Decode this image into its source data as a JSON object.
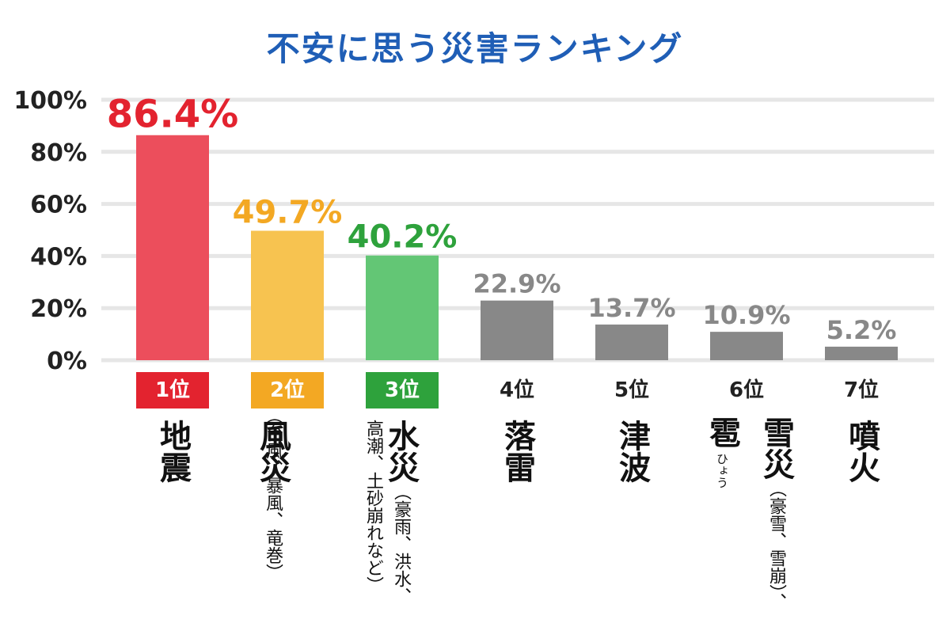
{
  "title": "不安に思う災害ランキング",
  "chart_data": {
    "type": "bar",
    "categories": [
      "地震",
      "風災",
      "水災",
      "落雷",
      "津波",
      "雹",
      "噴火"
    ],
    "values": [
      86.4,
      49.7,
      40.2,
      22.9,
      13.7,
      10.9,
      5.2
    ],
    "value_labels": [
      "86.4%",
      "49.7%",
      "40.2%",
      "22.9%",
      "13.7%",
      "10.9%",
      "5.2%"
    ],
    "ylim": [
      0,
      100
    ],
    "yticks": [
      "0%",
      "20%",
      "40%",
      "60%",
      "80%",
      "100%"
    ],
    "ytick_values": [
      0,
      20,
      40,
      60,
      80,
      100
    ],
    "grid": true,
    "colors": {
      "bars": [
        "#ec4e5c",
        "#f7c350",
        "#63c675",
        "#888888",
        "#888888",
        "#888888",
        "#888888"
      ],
      "labels": [
        "#e3232f",
        "#f3a823",
        "#2ea23c",
        "#888888",
        "#888888",
        "#888888",
        "#888888"
      ],
      "grid": "#e6e6e6",
      "title": "#1f5eb6"
    }
  },
  "ranks": [
    {
      "label": "1位",
      "color": "#e3232f"
    },
    {
      "label": "2位",
      "color": "#f3a823"
    },
    {
      "label": "3位",
      "color": "#2ea23c"
    },
    {
      "label": "4位",
      "color": ""
    },
    {
      "label": "5位",
      "color": ""
    },
    {
      "label": "6位",
      "color": ""
    },
    {
      "label": "7位",
      "color": ""
    }
  ],
  "category_labels": {
    "c1": {
      "main": "地震"
    },
    "c2": {
      "main": "風災",
      "sub": "（台風、暴風、竜巻）"
    },
    "c3": {
      "main": "水災",
      "sub1": "（豪雨、洪水、高潮、",
      "sub2": "土砂崩れなど）"
    },
    "c4": {
      "main": "落雷"
    },
    "c5": {
      "main": "津波"
    },
    "c6": {
      "main1": "雹",
      "ruby": "ひょう",
      "main2": "雪災",
      "sub": "（豪雪、雪崩）、"
    },
    "c7": {
      "main": "噴火"
    }
  }
}
